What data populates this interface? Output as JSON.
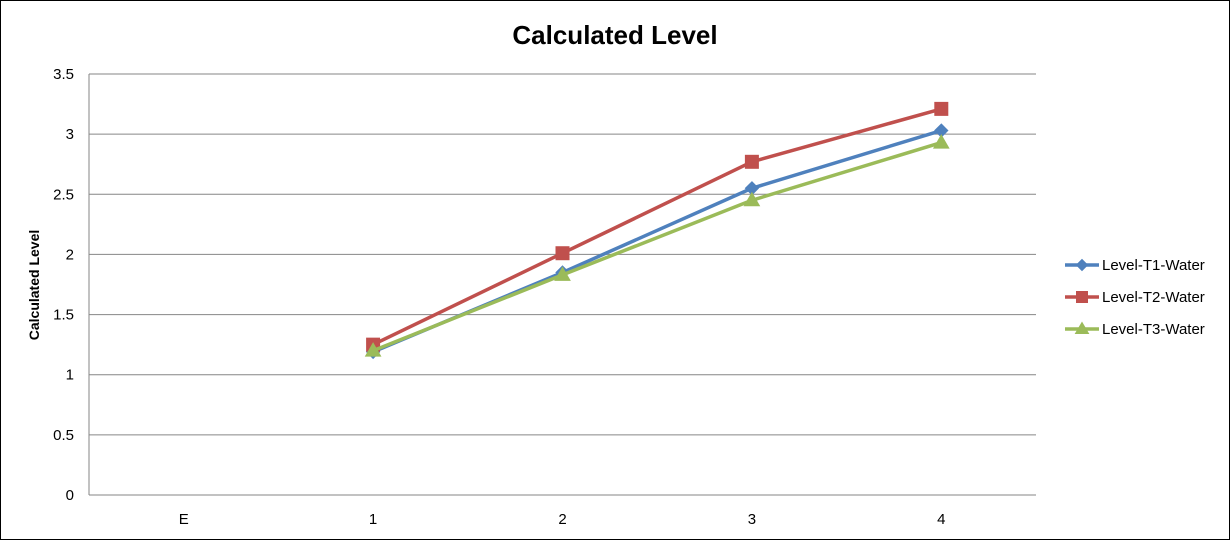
{
  "chart_data": {
    "type": "line",
    "title": "Calculated Level",
    "xlabel": "",
    "ylabel": "Calculated Level",
    "categories": [
      "E",
      "1",
      "2",
      "3",
      "4"
    ],
    "ylim": [
      0,
      3.5
    ],
    "yticks": [
      "0",
      "0.5",
      "1",
      "1.5",
      "2",
      "2.5",
      "3",
      "3.5"
    ],
    "grid": true,
    "legend_position": "right",
    "series": [
      {
        "name": "Level-T1-Water",
        "color": "#4F81BD",
        "marker": "diamond",
        "values": [
          null,
          1.19,
          1.85,
          2.55,
          3.03
        ]
      },
      {
        "name": "Level-T2-Water",
        "color": "#C0504D",
        "marker": "square",
        "values": [
          null,
          1.25,
          2.01,
          2.77,
          3.21
        ]
      },
      {
        "name": "Level-T3-Water",
        "color": "#9BBB59",
        "marker": "triangle",
        "values": [
          null,
          1.2,
          1.83,
          2.45,
          2.93
        ]
      }
    ]
  }
}
